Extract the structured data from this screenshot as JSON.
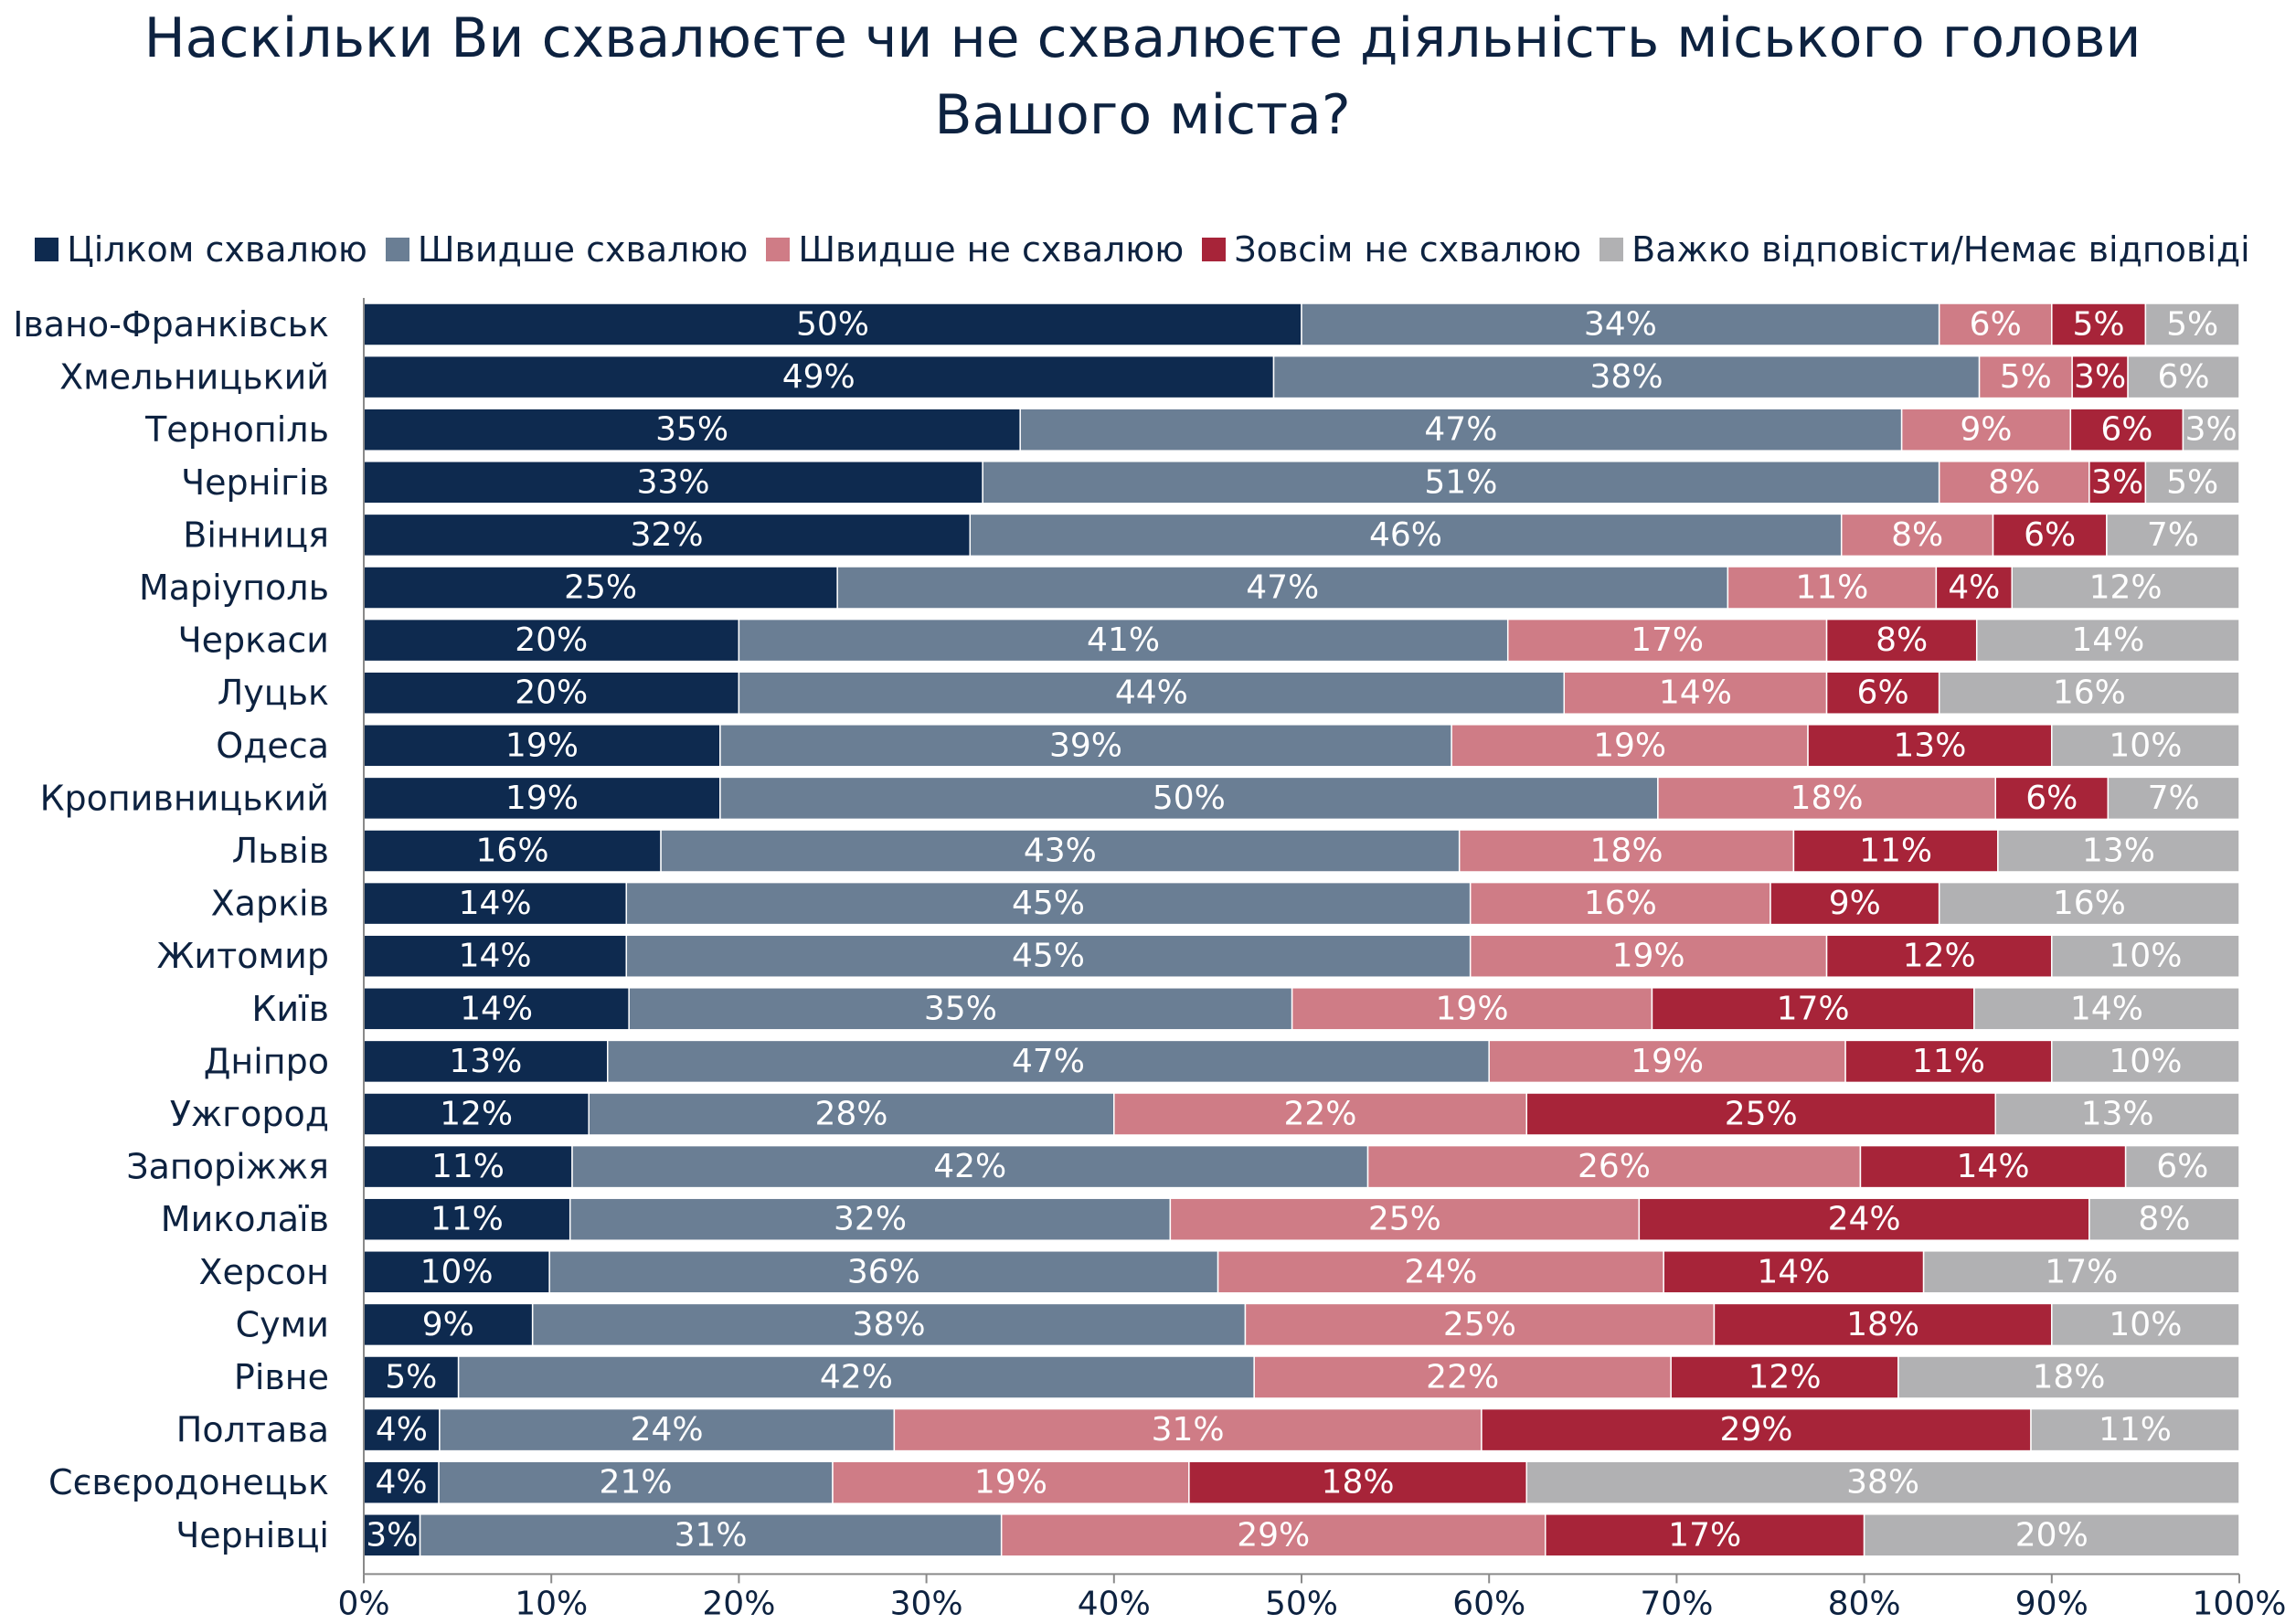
{
  "chart_data": {
    "type": "bar",
    "orientation": "horizontal",
    "stacked": "100%",
    "title_line1": "Наскільки Ви схвалюєте чи не схвалюєте діяльність міського голови",
    "title_line2": "Вашого міста?",
    "categories": [
      "Івано-Франківськ",
      "Хмельницький",
      "Тернопіль",
      "Чернігів",
      "Вінниця",
      "Маріуполь",
      "Черкаси",
      "Луцьк",
      "Одеса",
      "Кропивницький",
      "Львів",
      "Харків",
      "Житомир",
      "Київ",
      "Дніпро",
      "Ужгород",
      "Запоріжжя",
      "Миколаїв",
      "Херсон",
      "Суми",
      "Рівне",
      "Полтава",
      "Сєвєродонецьк",
      "Чернівці"
    ],
    "series": [
      {
        "name": "Цілком схвалюю",
        "color": "#0e2a4f",
        "label_color": "#ffffff",
        "values": [
          50,
          49,
          35,
          33,
          32,
          25,
          20,
          20,
          19,
          19,
          16,
          14,
          14,
          14,
          13,
          12,
          11,
          11,
          10,
          9,
          5,
          4,
          4,
          3
        ]
      },
      {
        "name": "Швидше схвалюю",
        "color": "#6a7e94",
        "label_color": "#ffffff",
        "values": [
          34,
          38,
          47,
          51,
          46,
          47,
          41,
          44,
          39,
          50,
          43,
          45,
          45,
          35,
          47,
          28,
          42,
          32,
          36,
          38,
          42,
          24,
          21,
          31
        ]
      },
      {
        "name": "Швидше не схвалюю",
        "color": "#cf7c86",
        "label_color": "#ffffff",
        "values": [
          6,
          5,
          9,
          8,
          8,
          11,
          17,
          14,
          19,
          18,
          18,
          16,
          19,
          19,
          19,
          22,
          26,
          25,
          24,
          25,
          22,
          31,
          19,
          29
        ]
      },
      {
        "name": "Зовсім не схвалюю",
        "color": "#a72439",
        "label_color": "#ffffff",
        "values": [
          5,
          3,
          6,
          3,
          6,
          4,
          8,
          6,
          13,
          6,
          11,
          9,
          12,
          17,
          11,
          25,
          14,
          24,
          14,
          18,
          12,
          29,
          18,
          17
        ]
      },
      {
        "name": "Важко відповісти/Немає відповіді",
        "color": "#b1b1b3",
        "label_color": "#ffffff",
        "values": [
          5,
          6,
          3,
          5,
          7,
          12,
          14,
          16,
          10,
          7,
          13,
          16,
          10,
          14,
          10,
          13,
          6,
          8,
          17,
          10,
          18,
          11,
          38,
          20
        ]
      }
    ],
    "xlim": [
      0,
      100
    ],
    "xticks": [
      "0%",
      "10%",
      "20%",
      "30%",
      "40%",
      "50%",
      "60%",
      "70%",
      "80%",
      "90%",
      "100%"
    ],
    "value_suffix": "%",
    "legend_position": "top",
    "grid": false
  }
}
